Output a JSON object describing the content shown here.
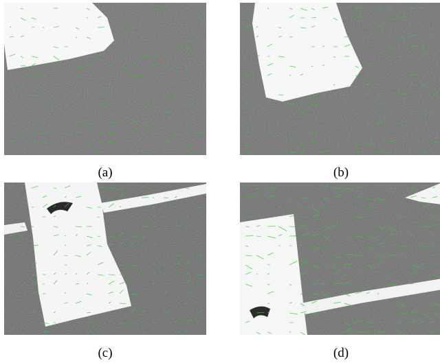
{
  "figure": {
    "panels": [
      {
        "id": "a",
        "caption": "(a)"
      },
      {
        "id": "b",
        "caption": "(b)"
      },
      {
        "id": "c",
        "caption": "(c)"
      },
      {
        "id": "d",
        "caption": "(d)"
      }
    ]
  },
  "colors": {
    "ground": "#8a8a8a",
    "marking": "#f7f7f7",
    "flow_vectors": "#2fcf2f"
  }
}
